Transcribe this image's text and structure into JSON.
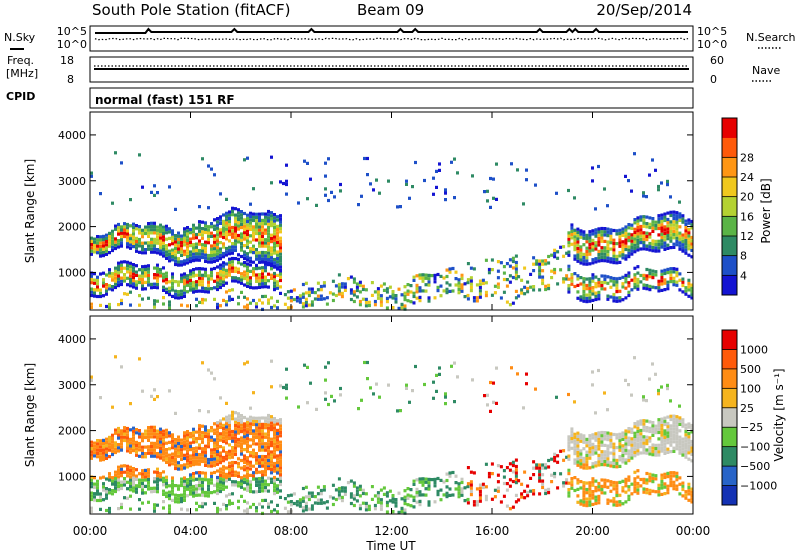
{
  "header": {
    "station": "South Pole Station (fitACF)",
    "beam": "Beam 09",
    "date": "20/Sep/2014"
  },
  "chart_data": [
    {
      "type": "line",
      "panel": "noise",
      "series": [
        {
          "name": "N.Sky",
          "style": "solid"
        },
        {
          "name": "N.Search",
          "style": "dotted"
        }
      ],
      "left_ticks": [
        "10^5",
        "10^0"
      ],
      "right_ticks": [
        "10^5",
        "10^0"
      ]
    },
    {
      "type": "line",
      "panel": "frequency",
      "series": [
        {
          "name": "Freq. [MHz]",
          "style": "solid"
        },
        {
          "name": "Nave",
          "style": "dotted"
        }
      ],
      "left_label_lines": [
        "Freq.",
        "[MHz]"
      ],
      "left_ticks": [
        "18",
        "8"
      ],
      "right_ticks": [
        "60",
        "0"
      ]
    },
    {
      "type": "label",
      "panel": "cpid",
      "label": "CPID",
      "value": "normal (fast) 151 RF"
    },
    {
      "type": "heatmap",
      "panel": "power",
      "ylabel": "Slant Range [km]",
      "yticks": [
        "1000",
        "2000",
        "3000",
        "4000"
      ],
      "ylim": [
        180,
        4500
      ],
      "xlim_hours": [
        0,
        24
      ],
      "colorbar": {
        "label": "Power [dB]",
        "ticks": [
          "4",
          "8",
          "12",
          "16",
          "20",
          "24",
          "28"
        ],
        "colors": [
          "#1414d2",
          "#1e50c8",
          "#2e8a64",
          "#5ab446",
          "#b4d232",
          "#f0c81e",
          "#ff9614",
          "#ff5a0a",
          "#e60000"
        ]
      }
    },
    {
      "type": "heatmap",
      "panel": "velocity",
      "ylabel": "Slant Range [km]",
      "yticks": [
        "1000",
        "2000",
        "3000",
        "4000"
      ],
      "ylim": [
        180,
        4500
      ],
      "xlim_hours": [
        0,
        24
      ],
      "xticks": [
        "00:00",
        "04:00",
        "08:00",
        "12:00",
        "16:00",
        "20:00",
        "00:00"
      ],
      "xlabel": "Time UT",
      "colorbar": {
        "label": "Velocity [m s⁻¹]",
        "ticks": [
          "1000",
          "500",
          "100",
          "25",
          "−25",
          "−100",
          "−500",
          "−1000"
        ],
        "colors": [
          "#1432b4",
          "#2864c8",
          "#2e8a64",
          "#64c83c",
          "#c8c8c0",
          "#f5b41e",
          "#ff8c14",
          "#ff5a0a",
          "#e60000"
        ]
      }
    }
  ]
}
